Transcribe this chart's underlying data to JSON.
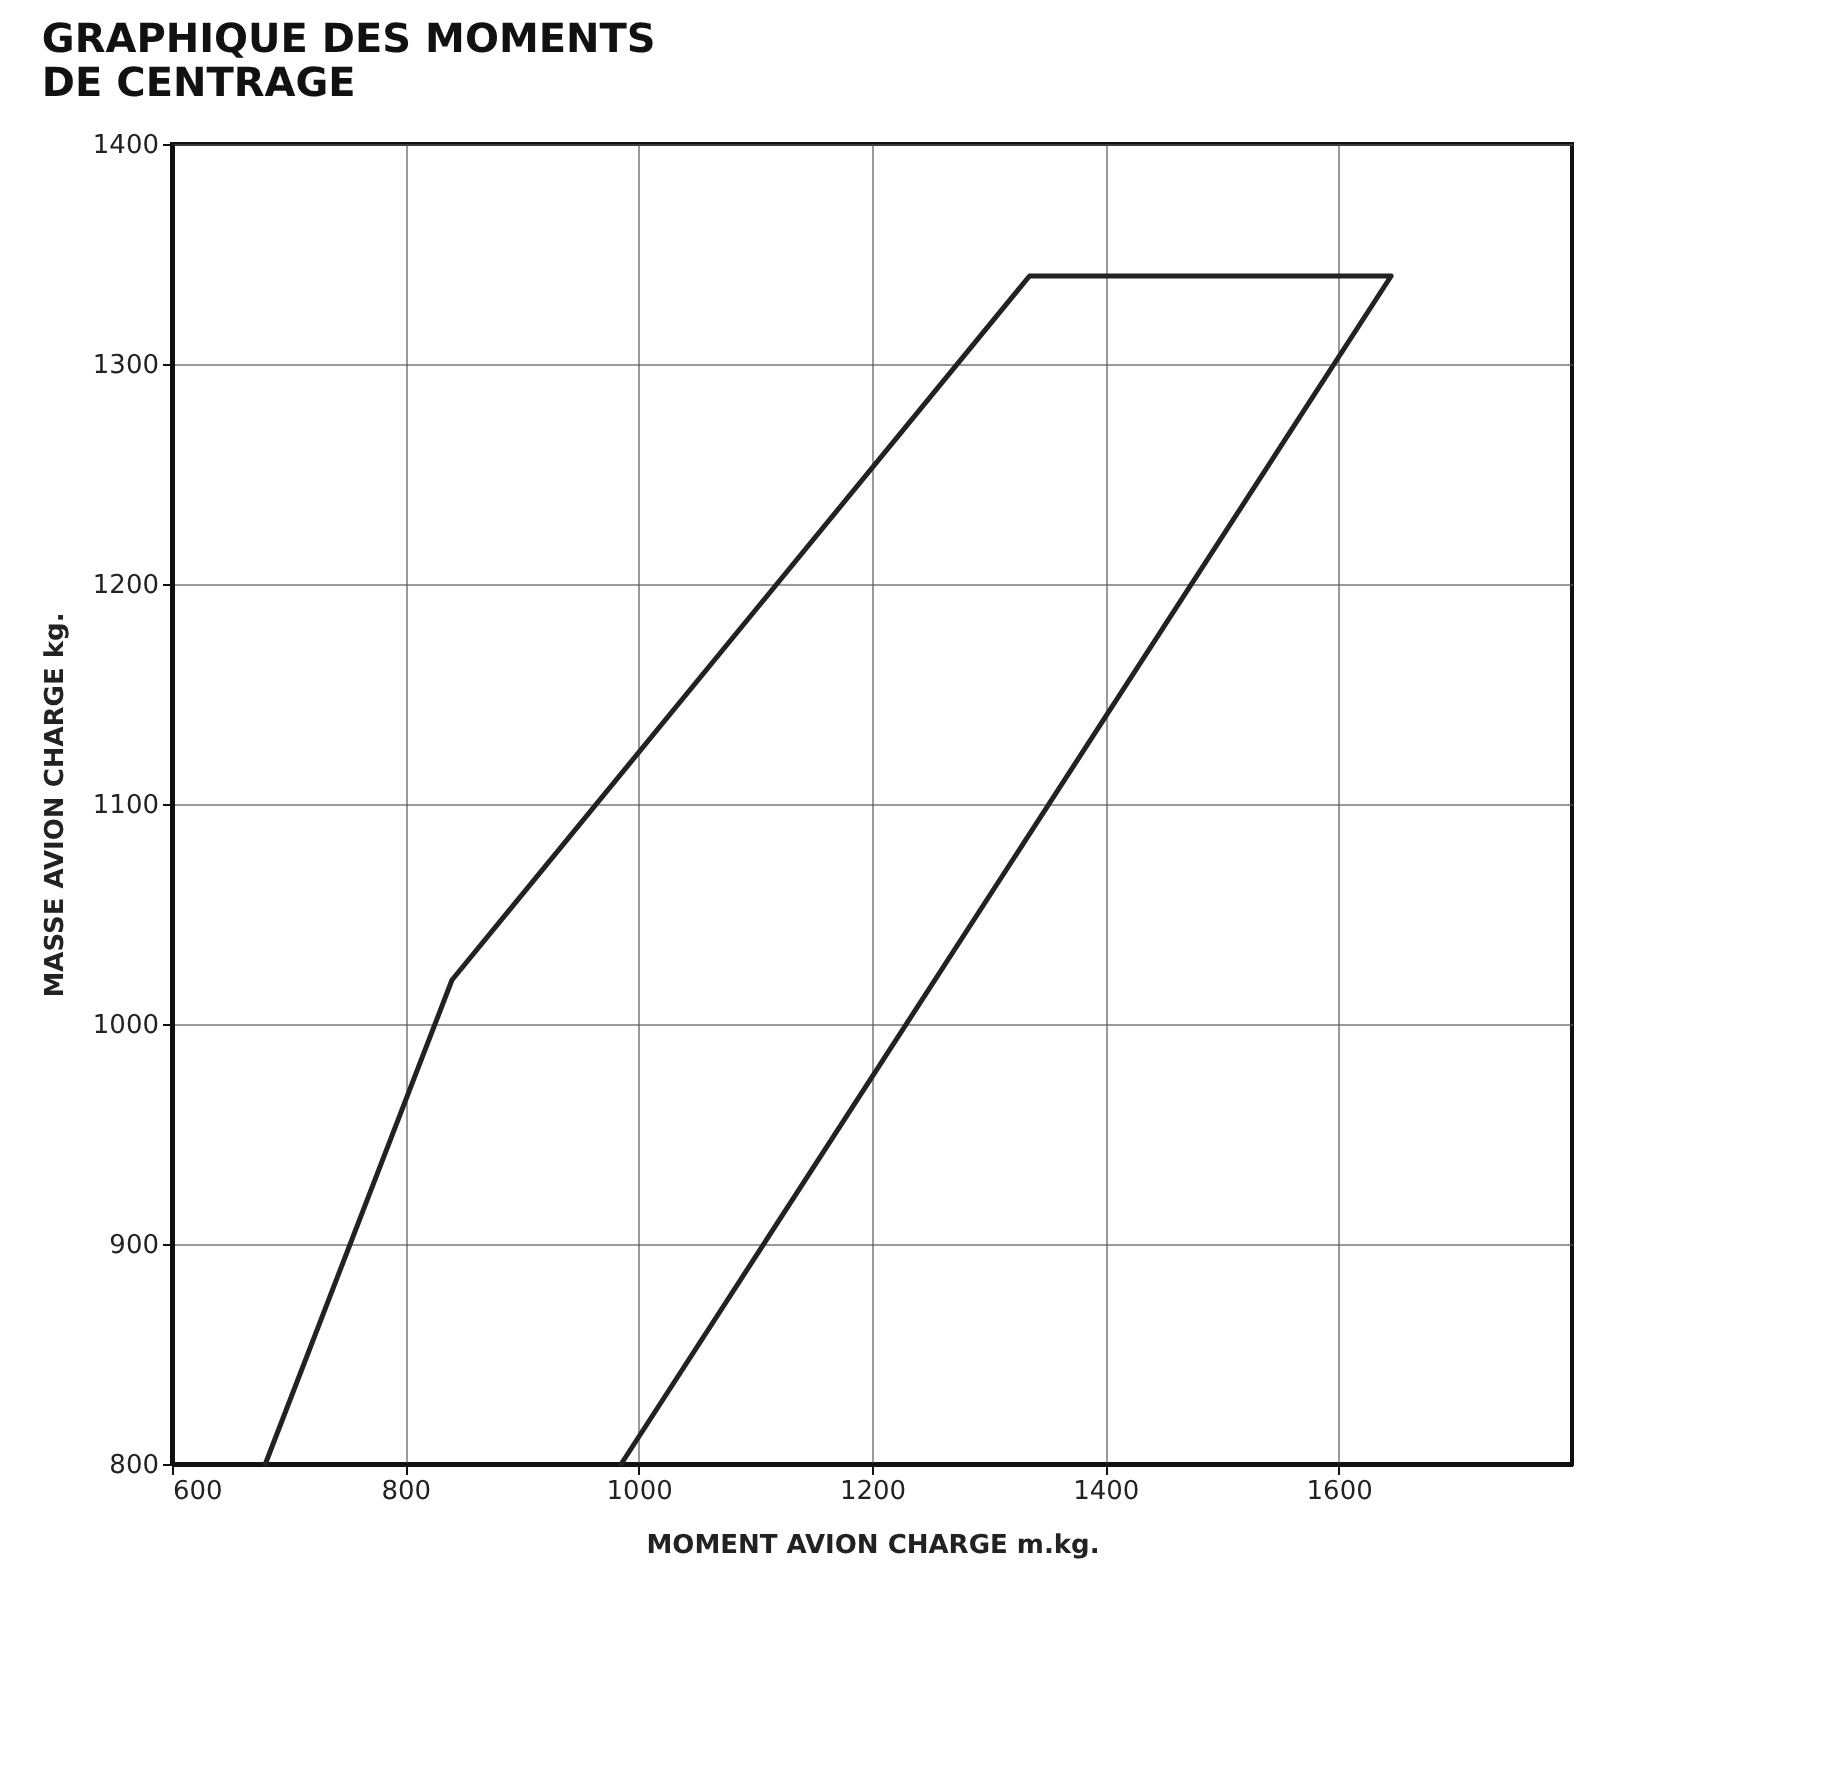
{
  "chart_data": {
    "type": "line",
    "title": [
      "GRAPHIQUE DES MOMENTS",
      "DE CENTRAGE"
    ],
    "xlabel": "MOMENT AVION CHARGE m.kg.",
    "ylabel": "MASSE AVION CHARGE kg.",
    "series": [
      {
        "color": "#222222",
        "x": [
          680,
          840,
          1335,
          1645,
          985
        ],
        "values": [
          800,
          1020,
          1340,
          1340,
          800
        ]
      }
    ],
    "xlim": [
      600,
      1800
    ],
    "xticks": [
      600,
      800,
      1000,
      1200,
      1400,
      1600
    ],
    "ylim": [
      800,
      1400
    ],
    "yticks": [
      800,
      900,
      1000,
      1100,
      1200,
      1300,
      1400
    ],
    "grid": true,
    "marker": "none",
    "line_style": "solid",
    "legend": false
  }
}
